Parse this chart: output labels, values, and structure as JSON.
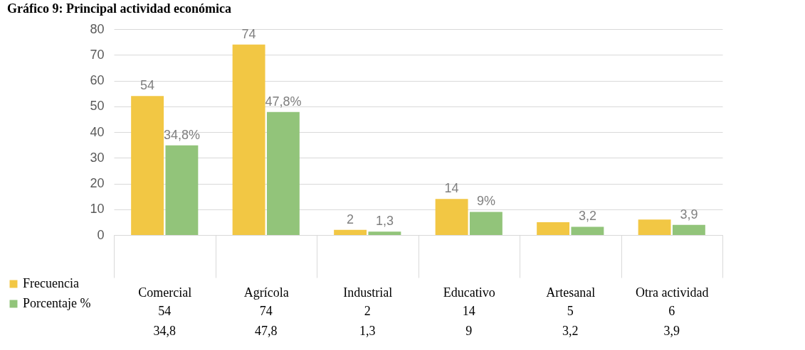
{
  "chart_data": {
    "type": "bar",
    "title": "Gráfico 9: Principal actividad económica",
    "categories": [
      "Comercial",
      "Agrícola",
      "Industrial",
      "Educativo",
      "Artesanal",
      "Otra actividad"
    ],
    "series": [
      {
        "name": "Frecuencia",
        "color": "#f2c744",
        "values": [
          54,
          74,
          2,
          14,
          5,
          6
        ],
        "value_labels": [
          "54",
          "74",
          "2",
          "14",
          "5",
          "6"
        ]
      },
      {
        "name": "Porcentaje %",
        "color": "#92c47a",
        "values": [
          34.8,
          47.8,
          1.3,
          9,
          3.2,
          3.9
        ],
        "value_labels": [
          "34,8",
          "47,8",
          "1,3",
          "9",
          "3,2",
          "3,9"
        ]
      }
    ],
    "annotations": [
      {
        "text": "54",
        "x": "Comercial",
        "y": 54
      },
      {
        "text": "34,8%",
        "x": "Comercial",
        "y": 34.8
      },
      {
        "text": "74",
        "x": "Agrícola",
        "y": 74
      },
      {
        "text": "47,8%",
        "x": "Agrícola",
        "y": 47.8
      },
      {
        "text": "2",
        "x": "Industrial",
        "y": 2
      },
      {
        "text": "1,3",
        "x": "Industrial",
        "y": 1.3
      },
      {
        "text": "14",
        "x": "Educativo",
        "y": 14
      },
      {
        "text": "9%",
        "x": "Educativo",
        "y": 9
      },
      {
        "text": "3,2",
        "x": "Artesanal",
        "y": 3.2
      },
      {
        "text": "3,9",
        "x": "Otra actividad",
        "y": 3.9
      }
    ],
    "ylim": [
      0,
      80
    ],
    "yticks": [
      0,
      10,
      20,
      30,
      40,
      50,
      60,
      70,
      80
    ],
    "grid": "y",
    "legend": "bottom left"
  }
}
